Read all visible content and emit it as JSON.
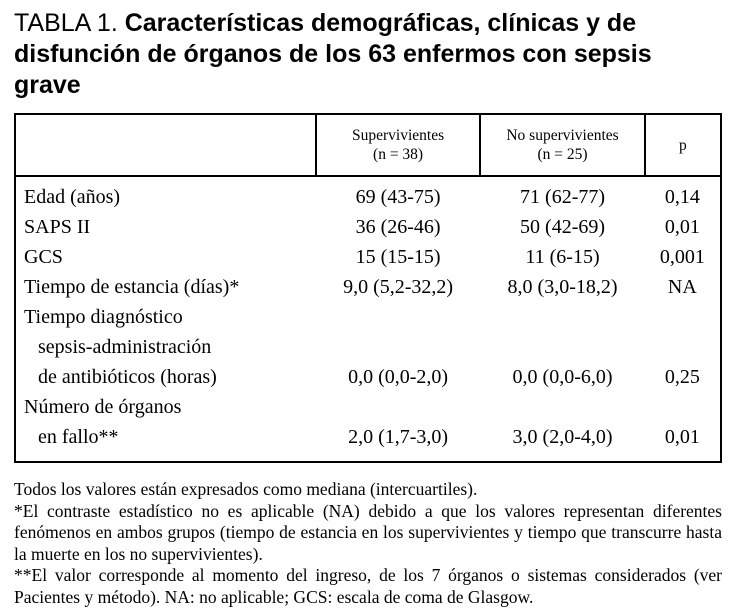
{
  "page": {
    "title_prefix": "TABLA 1.",
    "title_rest": "Características demográficas, clínicas y de disfunción de órganos de los 63 enfermos con sepsis grave"
  },
  "table": {
    "header": {
      "survivors": {
        "line1": "Supervivientes",
        "line2": "(n = 38)"
      },
      "non_survivors": {
        "line1": "No supervivientes",
        "line2": "(n = 25)"
      },
      "p": "p"
    },
    "rows": [
      {
        "label_lines": [
          "Edad (años)"
        ],
        "survivors": "69 (43-75)",
        "non_survivors": "71 (62-77)",
        "p": "0,14"
      },
      {
        "label_lines": [
          "SAPS II"
        ],
        "survivors": "36 (26-46)",
        "non_survivors": "50 (42-69)",
        "p": "0,01"
      },
      {
        "label_lines": [
          "GCS"
        ],
        "survivors": "15 (15-15)",
        "non_survivors": "11 (6-15)",
        "p": "0,001"
      },
      {
        "label_lines": [
          "Tiempo de estancia (días)*"
        ],
        "survivors": "9,0 (5,2-32,2)",
        "non_survivors": "8,0 (3,0-18,2)",
        "p": "NA"
      },
      {
        "label_lines": [
          "Tiempo diagnóstico",
          "sepsis-administración",
          "de antibióticos (horas)"
        ],
        "survivors": "0,0 (0,0-2,0)",
        "non_survivors": "0,0 (0,0-6,0)",
        "p": "0,25"
      },
      {
        "label_lines": [
          "Número de órganos",
          "en fallo**"
        ],
        "survivors": "2,0 (1,7-3,0)",
        "non_survivors": "3,0 (2,0-4,0)",
        "p": "0,01"
      }
    ]
  },
  "footnotes": [
    "Todos los valores están expresados como mediana (intercuartiles).",
    "*El contraste estadístico no es aplicable (NA) debido a que los valores representan diferentes fenómenos en ambos grupos (tiempo de estancia en los supervivientes y tiempo que transcurre hasta la muerte en los no supervivientes).",
    "**El valor corresponde al momento del ingreso, de los 7 órganos o sistemas considerados (ver Pacientes y método). NA: no aplicable; GCS: escala de coma de Glasgow."
  ]
}
